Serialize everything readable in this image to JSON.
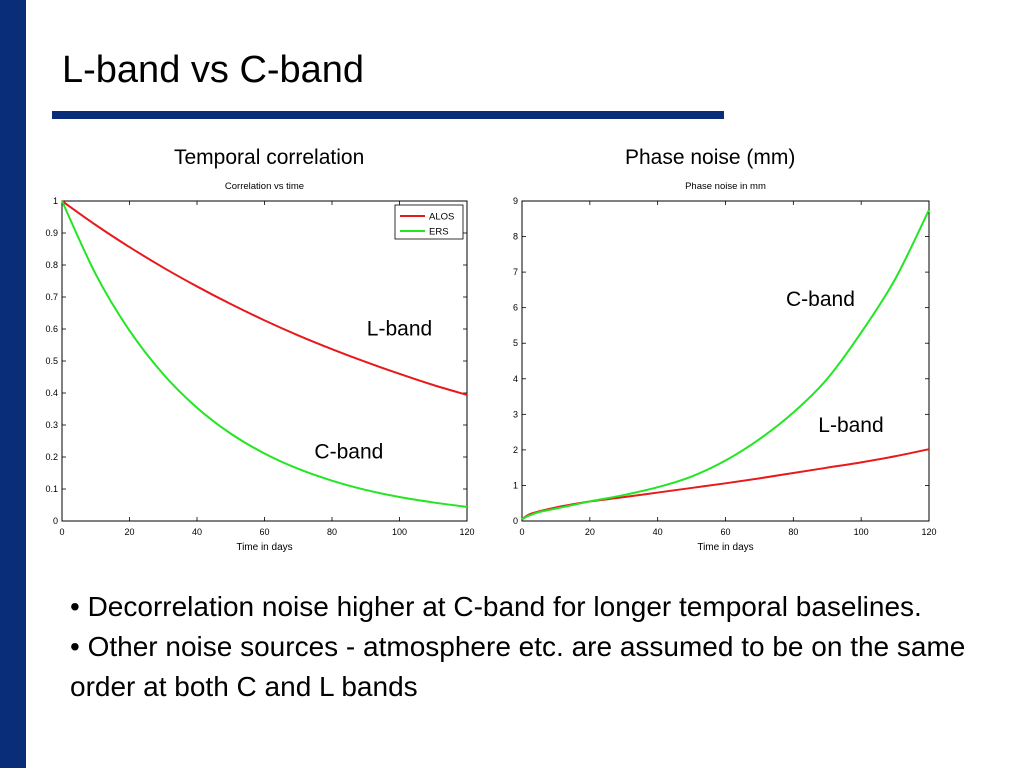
{
  "slide": {
    "title": "L-band vs C-band",
    "accent_color": "#0a2d7a"
  },
  "panels": {
    "left_heading": "Temporal correlation",
    "right_heading": "Phase noise  (mm)"
  },
  "bullets": [
    "• Decorrelation noise higher at C-band for longer temporal baselines.",
    "• Other noise sources  - atmosphere etc. are assumed to be on the same order at both C and L bands"
  ],
  "chart_data": [
    {
      "type": "line",
      "title": "Correlation vs time",
      "xlabel": "Time in days",
      "ylabel": "",
      "xlim": [
        0,
        120
      ],
      "ylim": [
        0,
        1
      ],
      "xticks": [
        0,
        20,
        40,
        60,
        80,
        100,
        120
      ],
      "yticks": [
        0,
        0.1,
        0.2,
        0.3,
        0.4,
        0.5,
        0.6,
        0.7,
        0.8,
        0.9,
        1
      ],
      "ytick_labels": [
        "0",
        "0.1",
        "0.2",
        "0.3",
        "0.4",
        "0.5",
        "0.6",
        "0.7",
        "0.8",
        "0.9",
        "1"
      ],
      "grid": false,
      "legend_position": "top-right",
      "x": [
        0,
        10,
        20,
        30,
        40,
        50,
        60,
        70,
        80,
        90,
        100,
        110,
        120
      ],
      "series": [
        {
          "name": "ALOS",
          "color": "#e8191a",
          "values": [
            1.0,
            0.925,
            0.856,
            0.792,
            0.733,
            0.678,
            0.627,
            0.58,
            0.537,
            0.497,
            0.46,
            0.425,
            0.394
          ]
        },
        {
          "name": "ERS",
          "color": "#22e622",
          "values": [
            1.0,
            0.771,
            0.595,
            0.459,
            0.354,
            0.273,
            0.211,
            0.163,
            0.126,
            0.097,
            0.075,
            0.058,
            0.044
          ]
        }
      ],
      "annotations": [
        {
          "text": "L-band",
          "x": 100,
          "y": 0.58
        },
        {
          "text": "C-band",
          "x": 85,
          "y": 0.195
        }
      ]
    },
    {
      "type": "line",
      "title": "Phase noise in mm",
      "xlabel": "Time in days",
      "ylabel": "",
      "xlim": [
        0,
        120
      ],
      "ylim": [
        0,
        9
      ],
      "xticks": [
        0,
        20,
        40,
        60,
        80,
        100,
        120
      ],
      "yticks": [
        0,
        1,
        2,
        3,
        4,
        5,
        6,
        7,
        8,
        9
      ],
      "ytick_labels": [
        "0",
        "1",
        "2",
        "3",
        "4",
        "5",
        "6",
        "7",
        "8",
        "9"
      ],
      "grid": false,
      "x": [
        0,
        2,
        5,
        10,
        15,
        20,
        30,
        40,
        50,
        60,
        70,
        80,
        90,
        100,
        110,
        120
      ],
      "series": [
        {
          "name": "L-band",
          "color": "#e8191a",
          "values": [
            0.05,
            0.18,
            0.27,
            0.38,
            0.47,
            0.55,
            0.67,
            0.8,
            0.93,
            1.06,
            1.2,
            1.35,
            1.5,
            1.65,
            1.82,
            2.02
          ]
        },
        {
          "name": "C-band",
          "color": "#22e622",
          "values": [
            0.05,
            0.15,
            0.25,
            0.35,
            0.45,
            0.55,
            0.73,
            0.95,
            1.25,
            1.7,
            2.3,
            3.05,
            4.0,
            5.3,
            6.8,
            8.75
          ]
        }
      ],
      "annotations": [
        {
          "text": "C-band",
          "x": 88,
          "y": 6.05
        },
        {
          "text": "L-band",
          "x": 97,
          "y": 2.5
        }
      ]
    }
  ]
}
